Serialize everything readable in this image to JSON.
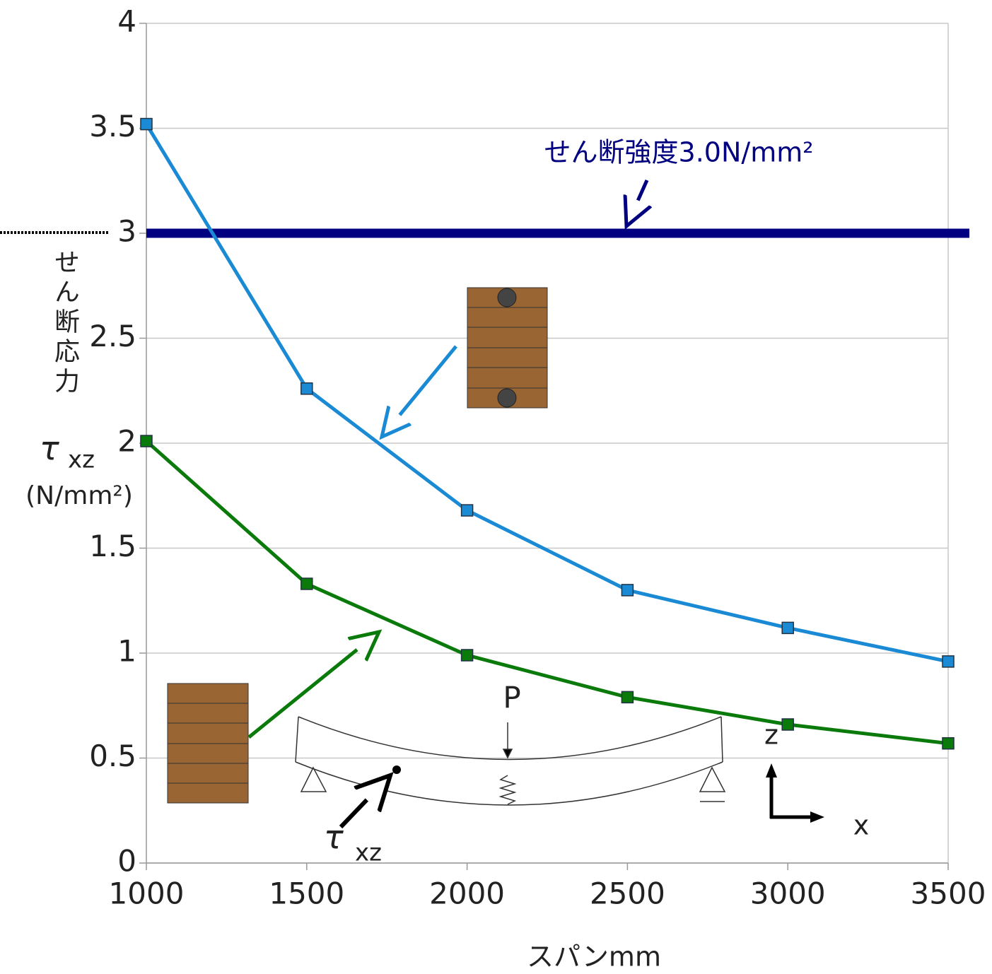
{
  "chart_data": {
    "type": "line",
    "xlabel": "スパンmm",
    "ylabel": "せん断応力",
    "ylabel_symbol": "τ",
    "ylabel_subscript": "xz",
    "ylabel_unit": "(N/mm²)",
    "x": [
      1000,
      1500,
      2000,
      2500,
      3000,
      3500
    ],
    "series": [
      {
        "color": "#1a8ad4",
        "values": [
          3.52,
          2.26,
          1.68,
          1.3,
          1.12,
          0.96
        ]
      },
      {
        "color": "#0a7a0a",
        "values": [
          2.01,
          1.33,
          0.99,
          0.79,
          0.66,
          0.57
        ]
      }
    ],
    "reference_line": {
      "value": 3,
      "color": "#000080",
      "label": "せん断強度3.0N/mm²"
    },
    "diagram_labels": {
      "load": "P",
      "z_axis": "z",
      "x_axis": "x",
      "stress_symbol": "τ",
      "stress_subscript": "xz"
    },
    "xlim": [
      1000,
      3500
    ],
    "xticks": [
      1000,
      1500,
      2000,
      2500,
      3000,
      3500
    ],
    "ylim": [
      0,
      4
    ],
    "yticks": [
      0,
      0.5,
      1,
      1.5,
      2,
      2.5,
      3,
      3.5,
      4
    ],
    "grid": true
  }
}
